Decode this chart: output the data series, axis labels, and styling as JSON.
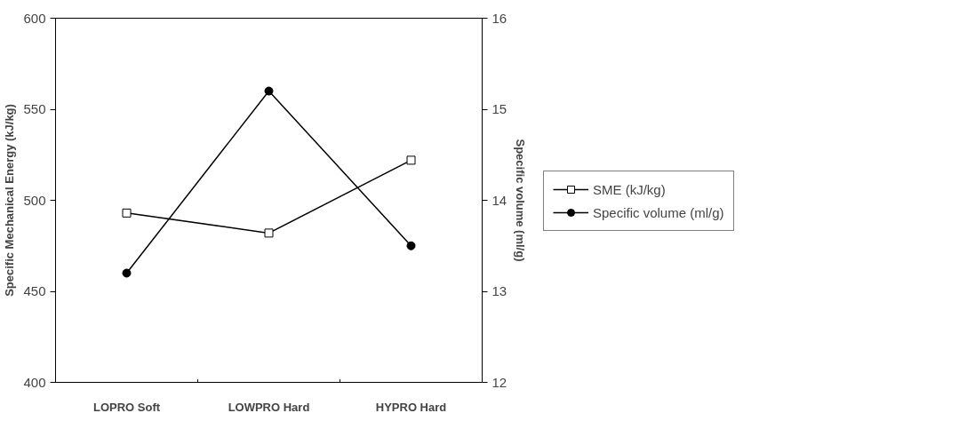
{
  "chart_data": {
    "type": "line",
    "categories": [
      "LOPRO Soft",
      "LOWPRO Hard",
      "HYPRO Hard"
    ],
    "ylabel": "Specific Mechanical Energy (kJ/kg)",
    "y2label": "Specific volume (ml/g)",
    "ylim": [
      400,
      600
    ],
    "yticks": [
      400,
      450,
      500,
      550,
      600
    ],
    "y2lim": [
      12,
      16
    ],
    "y2ticks": [
      12,
      13,
      14,
      15,
      16
    ],
    "grid": false,
    "legend": "right",
    "series": [
      {
        "name": "SME (kJ/kg)",
        "color": "#000000",
        "marker": "square",
        "values": [
          493,
          482,
          522
        ]
      },
      {
        "name": "Specific volume (ml/g)",
        "color": "#000000",
        "marker": "circle",
        "axis": "y2",
        "values": [
          13.2,
          15.2,
          13.5
        ]
      }
    ]
  }
}
